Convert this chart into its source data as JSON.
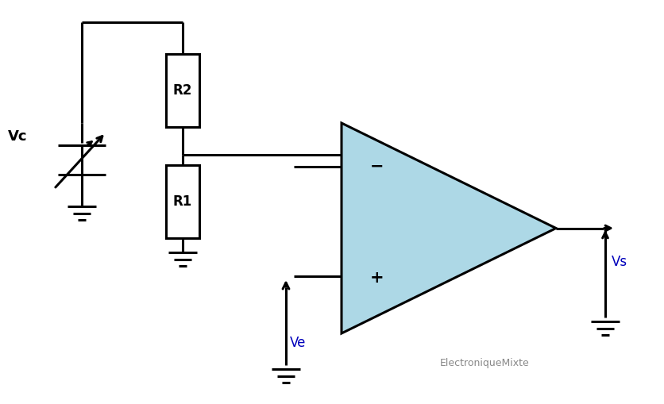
{
  "background_color": "#ffffff",
  "line_color": "#000000",
  "op_amp_fill": "#add8e6",
  "op_amp_stroke": "#000000",
  "label_Vc": "Vc",
  "label_Ve": "Ve",
  "label_Vs": "Vs",
  "label_R1": "R1",
  "label_R2": "R2",
  "label_watermark": "ElectroniqueMixte",
  "label_color_blue": "#0000bb",
  "lw": 2.2,
  "fig_width": 8.37,
  "fig_height": 5.09,
  "dpi": 100
}
